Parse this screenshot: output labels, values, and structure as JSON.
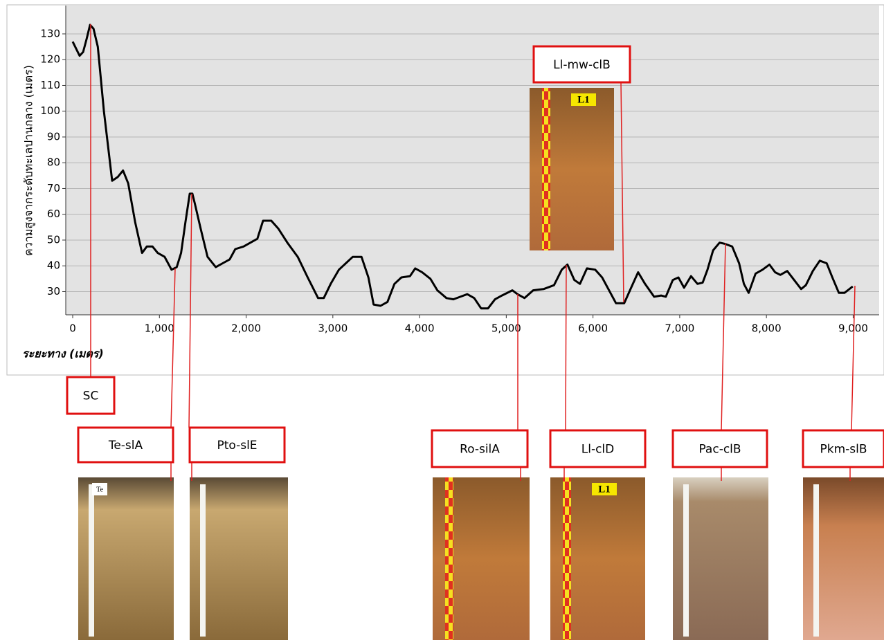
{
  "chart_data": {
    "type": "line",
    "y_label": "ความสูงจากระดับทะเลปานกลาง (เมตร)",
    "x_label": "ระยะทาง (เมตร)",
    "color": "#000000",
    "grid": true,
    "x": [
      0,
      80,
      120,
      160,
      200,
      240,
      290,
      360,
      455,
      520,
      580,
      640,
      720,
      800,
      855,
      920,
      980,
      1060,
      1140,
      1200,
      1250,
      1300,
      1350,
      1380,
      1410,
      1475,
      1555,
      1650,
      1730,
      1810,
      1875,
      1970,
      2050,
      2130,
      2195,
      2290,
      2370,
      2475,
      2595,
      2710,
      2830,
      2895,
      2975,
      3070,
      3150,
      3230,
      3330,
      3410,
      3470,
      3550,
      3630,
      3710,
      3790,
      3890,
      3950,
      4030,
      4125,
      4205,
      4310,
      4390,
      4470,
      4550,
      4630,
      4710,
      4790,
      4870,
      4950,
      5070,
      5130,
      5210,
      5310,
      5430,
      5550,
      5640,
      5705,
      5785,
      5850,
      5930,
      6025,
      6105,
      6185,
      6265,
      6360,
      6440,
      6520,
      6600,
      6705,
      6785,
      6840,
      6920,
      6985,
      7050,
      7130,
      7205,
      7265,
      7320,
      7385,
      7460,
      7525,
      7605,
      7685,
      7740,
      7795,
      7875,
      7955,
      8035,
      8100,
      8160,
      8240,
      8320,
      8400,
      8455,
      8535,
      8615,
      8695,
      8760,
      8835,
      8900,
      8995
    ],
    "values": [
      127,
      121.5,
      123,
      128,
      133.5,
      132,
      125,
      100,
      73,
      74.5,
      77,
      72,
      57,
      45,
      47.5,
      47.5,
      45,
      43.5,
      38.5,
      39.5,
      45,
      57,
      68,
      68,
      64,
      54.5,
      43.5,
      39.5,
      41,
      42.5,
      46.5,
      47.5,
      49,
      50.5,
      57.5,
      57.5,
      54.5,
      49,
      43.5,
      35.5,
      27.5,
      27.5,
      33,
      38.5,
      41,
      43.5,
      43.5,
      35.5,
      25,
      24.5,
      26,
      33,
      35.5,
      36,
      39,
      37.5,
      35,
      30.5,
      27.5,
      27,
      28,
      29,
      27.5,
      23.5,
      23.5,
      27,
      28.5,
      30.5,
      29,
      27.5,
      30.5,
      31,
      32.5,
      38.5,
      40.5,
      34.5,
      33,
      39,
      38.5,
      35.5,
      30.5,
      25.5,
      25.5,
      31.5,
      37.5,
      33,
      28,
      28.5,
      28,
      34.5,
      35.5,
      31.5,
      36,
      33,
      33.5,
      38.5,
      46,
      49,
      48.5,
      47.5,
      41,
      33,
      29.5,
      37,
      38.5,
      40.5,
      37.5,
      36.5,
      38,
      34.5,
      31,
      32.5,
      38,
      42,
      41,
      35.5,
      29.5,
      29.5,
      32
    ],
    "xlim": [
      -80,
      9300
    ],
    "ylim": [
      21,
      141
    ],
    "xticks": [
      0,
      {
        "value": 1000,
        "label": "1,000"
      },
      {
        "value": 2000,
        "label": "2,000"
      },
      {
        "value": 3000,
        "label": "3,000"
      },
      {
        "value": 4000,
        "label": "4,000"
      },
      {
        "value": 5000,
        "label": "5,000"
      },
      {
        "value": 6000,
        "label": "6,000"
      },
      {
        "value": 7000,
        "label": "7,000"
      },
      {
        "value": 8000,
        "label": "8,000"
      },
      {
        "value": 9000,
        "label": "9,000"
      }
    ],
    "yticks": [
      30,
      40,
      50,
      60,
      70,
      80,
      90,
      100,
      110,
      120,
      130
    ],
    "annotations": [
      {
        "text": "SC"
      },
      {
        "text": "Te-slA",
        "tag": "Te"
      },
      {
        "text": "Pto-slE"
      },
      {
        "text": "Ll-mw-clB",
        "tag": "L1"
      },
      {
        "text": "Ro-silA"
      },
      {
        "text": "Ll-clD",
        "tag": "L1"
      },
      {
        "text": "Pac-clB"
      },
      {
        "text": "Pkm-slB"
      }
    ]
  }
}
